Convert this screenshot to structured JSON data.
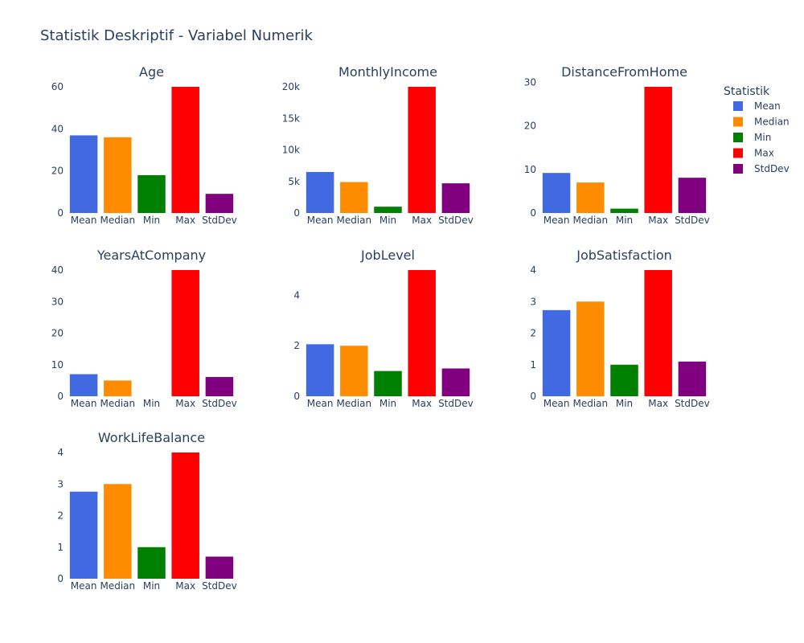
{
  "chart_data": {
    "type": "bar",
    "title": "Statistik Deskriptif - Variabel Numerik",
    "categories": [
      "Mean",
      "Median",
      "Min",
      "Max",
      "StdDev"
    ],
    "colors": {
      "Mean": "#4169e1",
      "Median": "#ff8c00",
      "Min": "#008000",
      "Max": "#ff0000",
      "StdDev": "#800080"
    },
    "legend": {
      "title": "Statistik",
      "placement": "top-right",
      "entries": [
        "Mean",
        "Median",
        "Min",
        "Max",
        "StdDev"
      ]
    },
    "grid": false,
    "subplots": [
      {
        "title": "Age",
        "values": [
          36.9,
          36,
          18,
          60,
          9.1
        ],
        "ylim": [
          0,
          60
        ],
        "ticks": [
          0,
          20,
          40,
          60
        ],
        "tick_labels": [
          "0",
          "20",
          "40",
          "60"
        ]
      },
      {
        "title": "MonthlyIncome",
        "values": [
          6500,
          4900,
          1000,
          20000,
          4700
        ],
        "ylim": [
          0,
          20000
        ],
        "ticks": [
          0,
          5000,
          10000,
          15000,
          20000
        ],
        "tick_labels": [
          "0",
          "5k",
          "10k",
          "15k",
          "20k"
        ]
      },
      {
        "title": "DistanceFromHome",
        "values": [
          9.2,
          7,
          1,
          29,
          8.1
        ],
        "ylim": [
          0,
          29
        ],
        "ticks": [
          0,
          10,
          20,
          30
        ],
        "tick_labels": [
          "0",
          "10",
          "20",
          "30"
        ]
      },
      {
        "title": "YearsAtCompany",
        "values": [
          7,
          5,
          0,
          40,
          6.1
        ],
        "ylim": [
          0,
          40
        ],
        "ticks": [
          0,
          10,
          20,
          30,
          40
        ],
        "tick_labels": [
          "0",
          "10",
          "20",
          "30",
          "40"
        ]
      },
      {
        "title": "JobLevel",
        "values": [
          2.06,
          2,
          1,
          5,
          1.1
        ],
        "ylim": [
          0,
          5
        ],
        "ticks": [
          0,
          2,
          4
        ],
        "tick_labels": [
          "0",
          "2",
          "4"
        ]
      },
      {
        "title": "JobSatisfaction",
        "values": [
          2.73,
          3,
          1,
          4,
          1.1
        ],
        "ylim": [
          0,
          4
        ],
        "ticks": [
          0,
          1,
          2,
          3,
          4
        ],
        "tick_labels": [
          "0",
          "1",
          "2",
          "3",
          "4"
        ]
      },
      {
        "title": "WorkLifeBalance",
        "values": [
          2.76,
          3,
          1,
          4,
          0.7
        ],
        "ylim": [
          0,
          4
        ],
        "ticks": [
          0,
          1,
          2,
          3,
          4
        ],
        "tick_labels": [
          "0",
          "1",
          "2",
          "3",
          "4"
        ]
      }
    ]
  }
}
